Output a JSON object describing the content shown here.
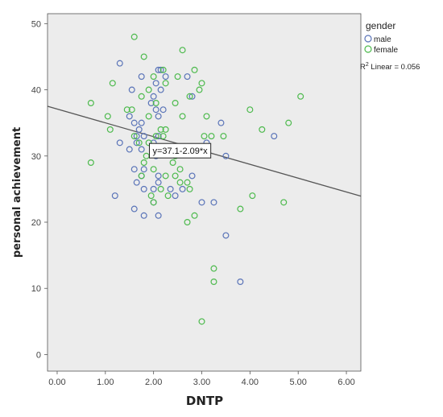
{
  "chart_data": {
    "type": "scatter",
    "xlabel": "DNTP",
    "ylabel": "personal achievement",
    "xlim": [
      -0.2,
      6.3
    ],
    "ylim": [
      -2.5,
      51.5
    ],
    "x_ticks": [
      "0.00",
      "1.00",
      "2.00",
      "3.00",
      "4.00",
      "5.00",
      "6.00"
    ],
    "y_ticks": [
      "0",
      "10",
      "20",
      "30",
      "40",
      "50"
    ],
    "grid": false,
    "background": "#ececec",
    "legend": {
      "title": "gender",
      "placement": "right",
      "r2_prefix": "R",
      "r2_sup": "2",
      "r2_text": " Linear = 0.056"
    },
    "fit_line": {
      "label": "y=37.1-2.09*x",
      "intercept": 37.1,
      "slope": -2.09,
      "color": "#555555",
      "label_x": 2.55,
      "label_y": 30.8
    },
    "series": [
      {
        "name": "male",
        "color": "#5a74b8",
        "points": [
          [
            1.3,
            44
          ],
          [
            1.55,
            40
          ],
          [
            1.75,
            42
          ],
          [
            2.1,
            43
          ],
          [
            2.15,
            43
          ],
          [
            2.25,
            42
          ],
          [
            2.05,
            41
          ],
          [
            2.15,
            40
          ],
          [
            2.0,
            39
          ],
          [
            1.95,
            38
          ],
          [
            2.05,
            37
          ],
          [
            2.2,
            37
          ],
          [
            2.1,
            36
          ],
          [
            1.5,
            36
          ],
          [
            1.6,
            35
          ],
          [
            1.75,
            35
          ],
          [
            1.7,
            34
          ],
          [
            1.65,
            33
          ],
          [
            1.8,
            33
          ],
          [
            1.3,
            32
          ],
          [
            1.65,
            32
          ],
          [
            1.75,
            31
          ],
          [
            1.5,
            31
          ],
          [
            2.1,
            33
          ],
          [
            2.0,
            32
          ],
          [
            2.05,
            30
          ],
          [
            3.4,
            35
          ],
          [
            2.8,
            39
          ],
          [
            2.7,
            42
          ],
          [
            3.5,
            30
          ],
          [
            4.5,
            33
          ],
          [
            3.1,
            32
          ],
          [
            1.6,
            28
          ],
          [
            1.8,
            28
          ],
          [
            2.1,
            27
          ],
          [
            1.75,
            27
          ],
          [
            1.65,
            26
          ],
          [
            1.8,
            25
          ],
          [
            2.0,
            25
          ],
          [
            2.1,
            26
          ],
          [
            2.35,
            25
          ],
          [
            2.45,
            24
          ],
          [
            2.6,
            25
          ],
          [
            2.8,
            27
          ],
          [
            1.2,
            24
          ],
          [
            2.0,
            23
          ],
          [
            3.0,
            23
          ],
          [
            3.25,
            23
          ],
          [
            1.6,
            22
          ],
          [
            1.8,
            21
          ],
          [
            2.1,
            21
          ],
          [
            3.5,
            18
          ],
          [
            3.8,
            11
          ]
        ]
      },
      {
        "name": "female",
        "color": "#4dba4d",
        "points": [
          [
            1.6,
            48
          ],
          [
            1.8,
            45
          ],
          [
            2.6,
            46
          ],
          [
            2.2,
            43
          ],
          [
            2.85,
            43
          ],
          [
            2.0,
            42
          ],
          [
            2.5,
            42
          ],
          [
            2.25,
            41
          ],
          [
            3.0,
            41
          ],
          [
            1.15,
            41
          ],
          [
            1.9,
            40
          ],
          [
            2.95,
            40
          ],
          [
            2.75,
            39
          ],
          [
            1.75,
            39
          ],
          [
            2.45,
            38
          ],
          [
            2.05,
            38
          ],
          [
            0.7,
            38
          ],
          [
            1.05,
            36
          ],
          [
            1.45,
            37
          ],
          [
            1.55,
            37
          ],
          [
            1.9,
            36
          ],
          [
            2.6,
            36
          ],
          [
            3.1,
            36
          ],
          [
            4.0,
            37
          ],
          [
            5.05,
            39
          ],
          [
            4.8,
            35
          ],
          [
            4.25,
            34
          ],
          [
            2.15,
            34
          ],
          [
            2.25,
            34
          ],
          [
            2.05,
            33
          ],
          [
            2.2,
            33
          ],
          [
            3.05,
            33
          ],
          [
            3.2,
            33
          ],
          [
            3.45,
            33
          ],
          [
            1.6,
            33
          ],
          [
            1.9,
            32
          ],
          [
            1.7,
            32
          ],
          [
            2.3,
            31
          ],
          [
            2.45,
            30
          ],
          [
            1.85,
            30
          ],
          [
            1.8,
            29
          ],
          [
            2.4,
            29
          ],
          [
            2.55,
            28
          ],
          [
            2.0,
            28
          ],
          [
            1.75,
            27
          ],
          [
            2.25,
            27
          ],
          [
            2.45,
            27
          ],
          [
            2.7,
            26
          ],
          [
            2.55,
            26
          ],
          [
            2.15,
            25
          ],
          [
            2.3,
            24
          ],
          [
            1.95,
            24
          ],
          [
            2.0,
            23
          ],
          [
            2.75,
            25
          ],
          [
            4.05,
            24
          ],
          [
            3.8,
            22
          ],
          [
            4.7,
            23
          ],
          [
            2.85,
            21
          ],
          [
            2.7,
            20
          ],
          [
            3.25,
            13
          ],
          [
            3.25,
            11
          ],
          [
            3.0,
            5
          ],
          [
            0.7,
            29
          ],
          [
            1.1,
            34
          ]
        ]
      }
    ]
  }
}
